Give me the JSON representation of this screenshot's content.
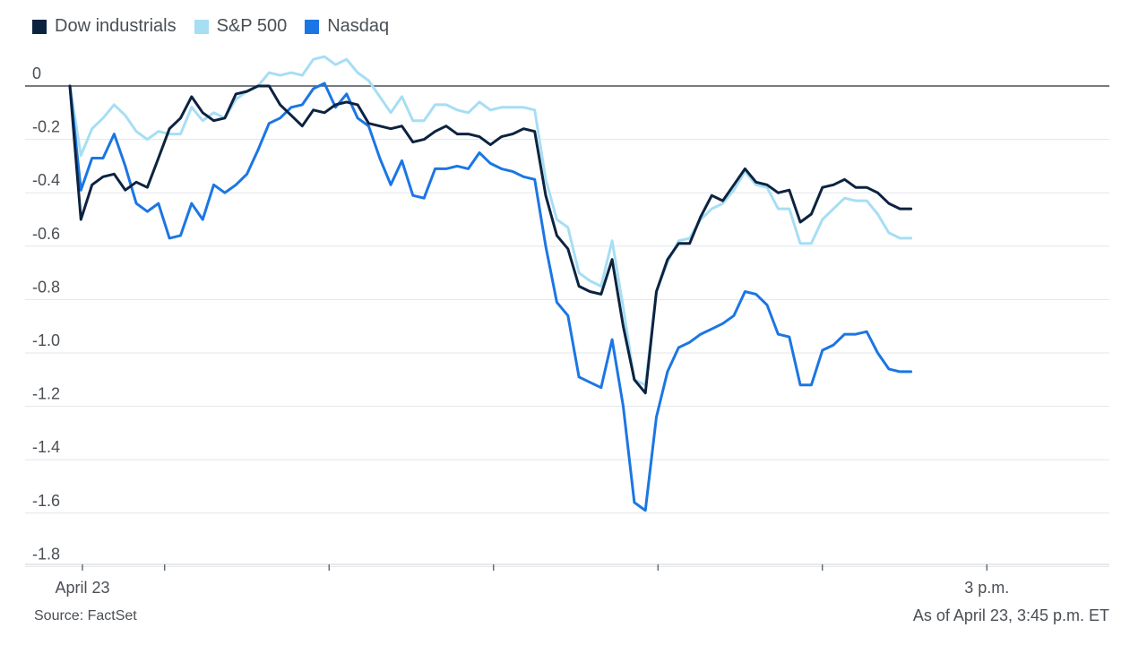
{
  "legend": [
    {
      "label": "Dow industrials",
      "color": "#0c2340"
    },
    {
      "label": "S&P 500",
      "color": "#a6def4"
    },
    {
      "label": "Nasdaq",
      "color": "#1b76e4"
    }
  ],
  "source": "Source: FactSet",
  "asof": "As of April 23, 3:45 p.m. ET",
  "chart_data": {
    "type": "line",
    "title": "",
    "xlabel": "",
    "ylabel": "",
    "ylim": [
      -1.8,
      0.1
    ],
    "yticks": [
      0,
      -0.2,
      -0.4,
      -0.6,
      -0.8,
      -1.0,
      -1.2,
      -1.4,
      -1.6,
      -1.8
    ],
    "ytick_labels": [
      "0",
      "-0.2",
      "-0.4",
      "-0.6",
      "-0.8",
      "-1.0",
      "-1.2",
      "-1.4",
      "-1.6",
      "-1.8"
    ],
    "xlim": [
      0,
      126
    ],
    "x_ticks": [
      1.5,
      11.5,
      31.5,
      51.5,
      71.5,
      91.5,
      111.5
    ],
    "x_tick_labels": [
      {
        "x": 1.5,
        "label": "April 23"
      },
      {
        "x": 111.5,
        "label": "3 p.m."
      }
    ],
    "grid": true,
    "legend_position": "top-left",
    "series": [
      {
        "name": "Dow industrials",
        "color": "#0c2340",
        "values": [
          0.0,
          -0.5,
          -0.37,
          -0.34,
          -0.33,
          -0.39,
          -0.36,
          -0.38,
          -0.27,
          -0.16,
          -0.12,
          -0.04,
          -0.1,
          -0.13,
          -0.12,
          -0.03,
          -0.02,
          0.0,
          0.0,
          -0.07,
          -0.11,
          -0.15,
          -0.09,
          -0.1,
          -0.07,
          -0.06,
          -0.07,
          -0.14,
          -0.15,
          -0.16,
          -0.15,
          -0.21,
          -0.2,
          -0.17,
          -0.15,
          -0.18,
          -0.18,
          -0.19,
          -0.22,
          -0.19,
          -0.18,
          -0.16,
          -0.17,
          -0.41,
          -0.56,
          -0.61,
          -0.75,
          -0.77,
          -0.78,
          -0.65,
          -0.9,
          -1.1,
          -1.15,
          -0.77,
          -0.65,
          -0.59,
          -0.59,
          -0.49,
          -0.41,
          -0.43,
          -0.37,
          -0.31,
          -0.36,
          -0.37,
          -0.4,
          -0.39,
          -0.51,
          -0.48,
          -0.38,
          -0.37,
          -0.35,
          -0.38,
          -0.38,
          -0.4,
          -0.44,
          -0.46,
          -0.46
        ],
        "x_step": 1.57
      },
      {
        "name": "S&P 500",
        "color": "#a6def4",
        "values": [
          0.0,
          -0.26,
          -0.16,
          -0.12,
          -0.07,
          -0.11,
          -0.17,
          -0.2,
          -0.17,
          -0.18,
          -0.18,
          -0.08,
          -0.13,
          -0.1,
          -0.12,
          -0.05,
          -0.02,
          0.0,
          0.05,
          0.04,
          0.05,
          0.04,
          0.1,
          0.11,
          0.08,
          0.1,
          0.05,
          0.02,
          -0.04,
          -0.1,
          -0.04,
          -0.13,
          -0.13,
          -0.07,
          -0.07,
          -0.09,
          -0.1,
          -0.06,
          -0.09,
          -0.08,
          -0.08,
          -0.08,
          -0.09,
          -0.35,
          -0.5,
          -0.53,
          -0.7,
          -0.73,
          -0.75,
          -0.58,
          -0.83,
          -1.1,
          -1.12,
          -0.77,
          -0.66,
          -0.58,
          -0.57,
          -0.5,
          -0.46,
          -0.44,
          -0.39,
          -0.32,
          -0.37,
          -0.38,
          -0.46,
          -0.46,
          -0.59,
          -0.59,
          -0.5,
          -0.46,
          -0.42,
          -0.43,
          -0.43,
          -0.48,
          -0.55,
          -0.57,
          -0.57
        ],
        "x_step": 1.57
      },
      {
        "name": "Nasdaq",
        "color": "#1b76e4",
        "values": [
          0.0,
          -0.39,
          -0.27,
          -0.27,
          -0.18,
          -0.3,
          -0.44,
          -0.47,
          -0.44,
          -0.57,
          -0.56,
          -0.44,
          -0.5,
          -0.37,
          -0.4,
          -0.37,
          -0.33,
          -0.24,
          -0.14,
          -0.12,
          -0.08,
          -0.07,
          -0.01,
          0.01,
          -0.08,
          -0.03,
          -0.12,
          -0.15,
          -0.27,
          -0.37,
          -0.28,
          -0.41,
          -0.42,
          -0.31,
          -0.31,
          -0.3,
          -0.31,
          -0.25,
          -0.29,
          -0.31,
          -0.32,
          -0.34,
          -0.35,
          -0.6,
          -0.81,
          -0.86,
          -1.09,
          -1.11,
          -1.13,
          -0.95,
          -1.2,
          -1.56,
          -1.59,
          -1.24,
          -1.07,
          -0.98,
          -0.96,
          -0.93,
          -0.91,
          -0.89,
          -0.86,
          -0.77,
          -0.78,
          -0.82,
          -0.93,
          -0.94,
          -1.12,
          -1.12,
          -0.99,
          -0.97,
          -0.93,
          -0.93,
          -0.92,
          -1.0,
          -1.06,
          -1.07,
          -1.07
        ],
        "x_step": 1.57
      }
    ]
  }
}
